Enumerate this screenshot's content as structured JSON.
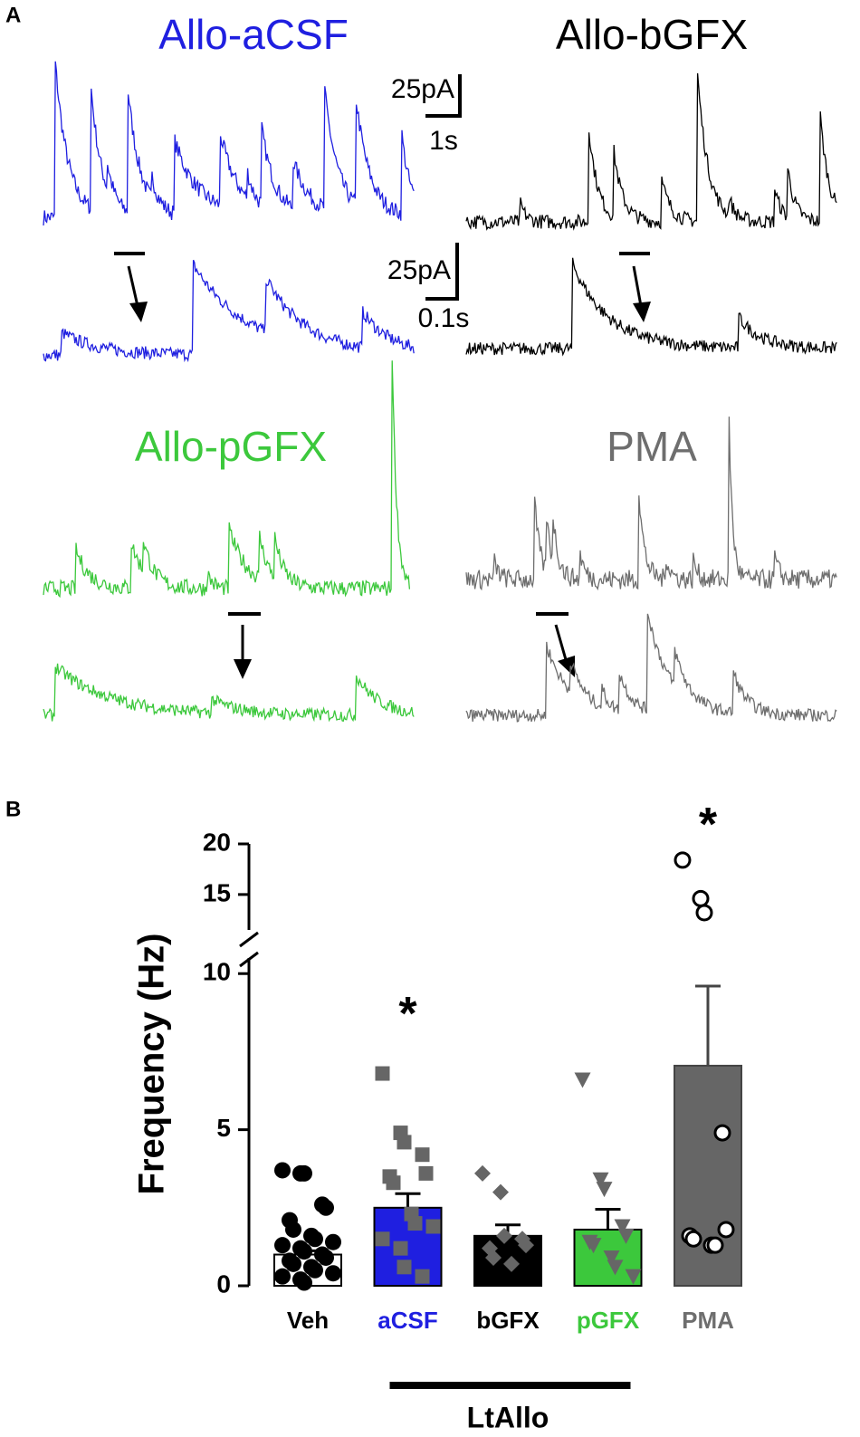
{
  "panel_a": {
    "label": "A",
    "traces": [
      {
        "title": "Allo-aCSF",
        "color": "#1f1fe0"
      },
      {
        "title": "Allo-bGFX",
        "color": "#000000"
      },
      {
        "title": "Allo-pGFX",
        "color": "#3cc83c"
      },
      {
        "title": "PMA",
        "color": "#6e6e6e"
      }
    ],
    "scale_bars": [
      {
        "y": "25pA",
        "x": "1s"
      },
      {
        "y": "25pA",
        "x": "0.1s"
      }
    ]
  },
  "chart_data": {
    "type": "bar",
    "panel_label": "B",
    "y_label": "Frequency (Hz)",
    "categories": [
      "Veh",
      "aCSF",
      "bGFX",
      "pGFX",
      "PMA"
    ],
    "category_colors": [
      "#000000",
      "#1f1fe0",
      "#000000",
      "#3cc83c",
      "#6e6e6e"
    ],
    "values": [
      1.0,
      2.5,
      1.6,
      1.8,
      7.05
    ],
    "errors": [
      0.12,
      0.45,
      0.35,
      0.65,
      2.55
    ],
    "bar_colors": [
      "#ffffff",
      "#1f1fe0",
      "#000000",
      "#3cc83c",
      "#666666"
    ],
    "points": [
      [
        3.7,
        3.6,
        3.6,
        2.6,
        2.5,
        2.1,
        1.8,
        1.6,
        1.5,
        1.4,
        1.3,
        1.2,
        1.1,
        1.0,
        0.9,
        0.8,
        0.7,
        0.6,
        0.5,
        0.4,
        0.3,
        0.2,
        0.1
      ],
      [
        6.8,
        4.9,
        4.6,
        4.2,
        3.6,
        3.5,
        3.3,
        2.3,
        2.0,
        1.9,
        1.5,
        1.2,
        0.6,
        0.3
      ],
      [
        3.6,
        3.0,
        1.6,
        1.5,
        1.3,
        1.2,
        0.9,
        0.7
      ],
      [
        6.6,
        3.4,
        3.1,
        1.9,
        1.6,
        1.4,
        1.3,
        0.9,
        0.6,
        0.3
      ],
      [
        18.4,
        14.6,
        13.2,
        4.9,
        1.8,
        1.6,
        1.5,
        1.3,
        1.3
      ]
    ],
    "point_markers": [
      "circle",
      "square",
      "diamond",
      "triangle-down",
      "open-circle"
    ],
    "point_colors": [
      "#000000",
      "#666666",
      "#666666",
      "#666666",
      "#000000"
    ],
    "ylim": [
      0,
      10.5
    ],
    "yticks": [
      0,
      5,
      10
    ],
    "ylim_upper": [
      11.5,
      20
    ],
    "yticks_upper": [
      15,
      20
    ],
    "annotations": [
      {
        "text": "*",
        "category": "aCSF",
        "y": 8.9
      },
      {
        "text": "*",
        "category": "PMA",
        "y": 22.5
      }
    ],
    "group": {
      "label": "LtAllo",
      "from": "aCSF",
      "to": "pGFX"
    }
  }
}
